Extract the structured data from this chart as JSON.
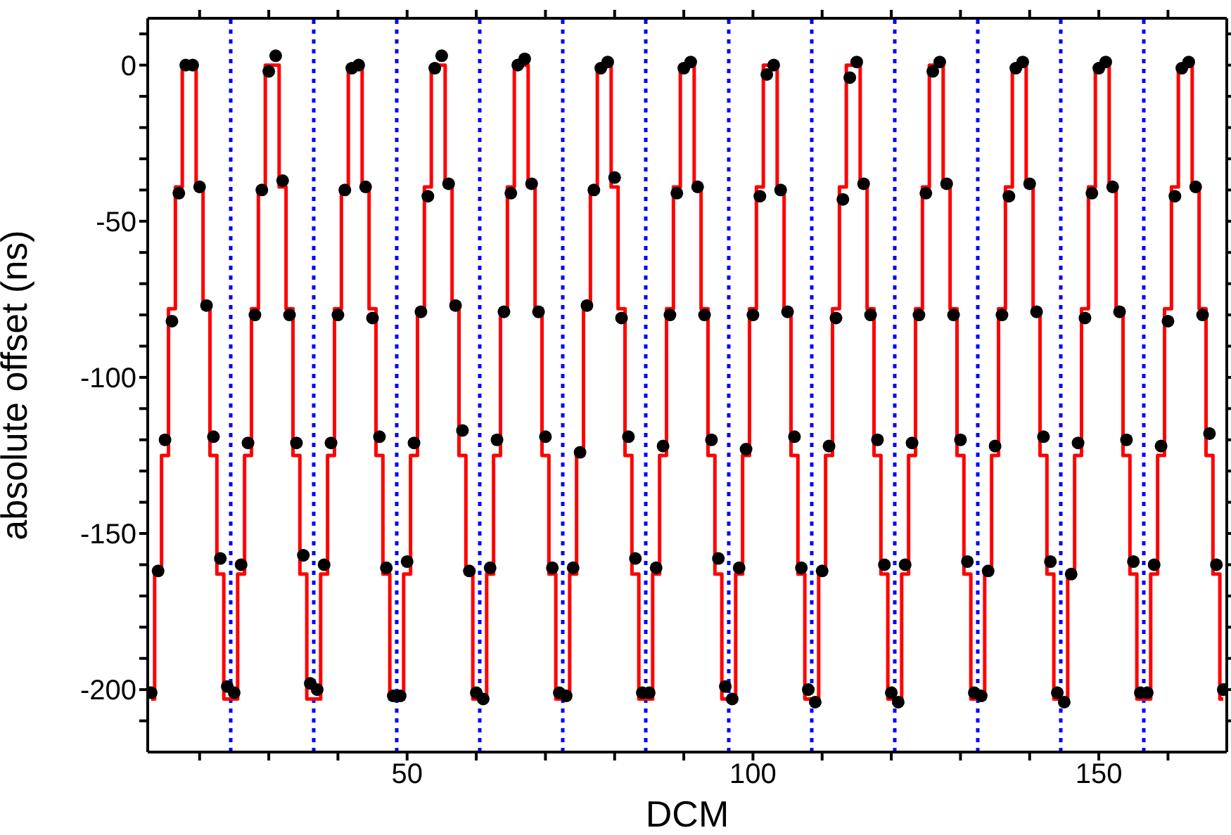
{
  "chart_data": {
    "type": "scatter",
    "xlabel": "DCM",
    "ylabel": "absolute offset (ns)",
    "xlim": [
      12.5,
      168.5
    ],
    "xticks": [
      {
        "value": 20,
        "label": null
      },
      {
        "value": 30,
        "label": null
      },
      {
        "value": 40,
        "label": null
      },
      50,
      {
        "value": 60,
        "label": null
      },
      {
        "value": 70,
        "label": null
      },
      {
        "value": 80,
        "label": null
      },
      {
        "value": 90,
        "label": null
      },
      100,
      {
        "value": 110,
        "label": null
      },
      {
        "value": 120,
        "label": null
      },
      {
        "value": 130,
        "label": null
      },
      {
        "value": 140,
        "label": null
      },
      150,
      {
        "value": 160,
        "label": null
      }
    ],
    "ylim": [
      -220,
      15
    ],
    "yticks": [
      {
        "value": -210,
        "label": null
      },
      -200,
      {
        "value": -190,
        "label": null
      },
      {
        "value": -180,
        "label": null
      },
      {
        "value": -170,
        "label": null
      },
      {
        "value": -160,
        "label": null
      },
      -150,
      {
        "value": -140,
        "label": null
      },
      {
        "value": -130,
        "label": null
      },
      {
        "value": -120,
        "label": null
      },
      {
        "value": -110,
        "label": null
      },
      -100,
      {
        "value": -90,
        "label": null
      },
      {
        "value": -80,
        "label": null
      },
      {
        "value": -70,
        "label": null
      },
      {
        "value": -60,
        "label": null
      },
      -50,
      {
        "value": -40,
        "label": null
      },
      {
        "value": -30,
        "label": null
      },
      {
        "value": -20,
        "label": null
      },
      {
        "value": -10,
        "label": null
      },
      0,
      {
        "value": 10,
        "label": null
      }
    ],
    "grid": false,
    "x": [
      13,
      14,
      15,
      16,
      17,
      18,
      19,
      20,
      21,
      22,
      23,
      24,
      25,
      26,
      27,
      28,
      29,
      30,
      31,
      32,
      33,
      34,
      35,
      36,
      37,
      38,
      39,
      40,
      41,
      42,
      43,
      44,
      45,
      46,
      47,
      48,
      49,
      50,
      51,
      52,
      53,
      54,
      55,
      56,
      57,
      58,
      59,
      60,
      61,
      62,
      63,
      64,
      65,
      66,
      67,
      68,
      69,
      70,
      71,
      72,
      73,
      74,
      75,
      76,
      77,
      78,
      79,
      80,
      81,
      82,
      83,
      84,
      85,
      86,
      87,
      88,
      89,
      90,
      91,
      92,
      93,
      94,
      95,
      96,
      97,
      98,
      99,
      100,
      101,
      102,
      103,
      104,
      105,
      106,
      107,
      108,
      109,
      110,
      111,
      112,
      113,
      114,
      115,
      116,
      117,
      118,
      119,
      120,
      121,
      122,
      123,
      124,
      125,
      126,
      127,
      128,
      129,
      130,
      131,
      132,
      133,
      134,
      135,
      136,
      137,
      138,
      139,
      140,
      141,
      142,
      143,
      144,
      145,
      146,
      147,
      148,
      149,
      150,
      151,
      152,
      153,
      154,
      155,
      156,
      157,
      158,
      159,
      160,
      161,
      162,
      163,
      164,
      165,
      166,
      167,
      168
    ],
    "series": [
      {
        "type": "step",
        "color": "#ff0000",
        "marker": "none",
        "values": [
          -203,
          -163,
          -125,
          -78,
          -39,
          0,
          0,
          -39,
          -78,
          -125,
          -163,
          -203,
          -203,
          -163,
          -125,
          -78,
          -39,
          0,
          0,
          -39,
          -78,
          -125,
          -163,
          -203,
          -203,
          -163,
          -125,
          -78,
          -39,
          0,
          0,
          -39,
          -78,
          -125,
          -163,
          -203,
          -203,
          -163,
          -125,
          -78,
          -39,
          0,
          0,
          -39,
          -78,
          -125,
          -163,
          -203,
          -203,
          -163,
          -125,
          -78,
          -39,
          0,
          0,
          -39,
          -78,
          -125,
          -163,
          -203,
          -203,
          -163,
          -125,
          -78,
          -39,
          0,
          0,
          -39,
          -78,
          -125,
          -163,
          -203,
          -203,
          -163,
          -125,
          -78,
          -39,
          0,
          0,
          -39,
          -78,
          -125,
          -163,
          -203,
          -203,
          -163,
          -125,
          -78,
          -39,
          0,
          0,
          -39,
          -78,
          -125,
          -163,
          -203,
          -203,
          -163,
          -125,
          -78,
          -39,
          0,
          0,
          -39,
          -78,
          -125,
          -163,
          -203,
          -203,
          -163,
          -125,
          -78,
          -39,
          0,
          0,
          -39,
          -78,
          -125,
          -163,
          -203,
          -203,
          -163,
          -125,
          -78,
          -39,
          0,
          0,
          -39,
          -78,
          -125,
          -163,
          -203,
          -203,
          -163,
          -125,
          -78,
          -39,
          0,
          0,
          -39,
          -78,
          -125,
          -163,
          -203,
          -203,
          -163,
          -125,
          -78,
          -39,
          0,
          0,
          -39,
          -78,
          -125,
          -163,
          -203
        ]
      },
      {
        "color": "#000000",
        "marker": "circle",
        "values": [
          -201,
          -162,
          -120,
          -82,
          -41,
          0,
          0,
          -39,
          -77,
          -119,
          -158,
          -199,
          -201,
          -160,
          -121,
          -80,
          -40,
          -2,
          3,
          -37,
          -80,
          -121,
          -157,
          -198,
          -200,
          -160,
          -121,
          -80,
          -40,
          -1,
          0,
          -39,
          -81,
          -119,
          -161,
          -202,
          -202,
          -159,
          -121,
          -79,
          -42,
          -1,
          3,
          -38,
          -77,
          -117,
          -162,
          -201,
          -203,
          -161,
          -120,
          -79,
          -41,
          0,
          2,
          -38,
          -79,
          -119,
          -161,
          -201,
          -202,
          -161,
          -124,
          -77,
          -40,
          -1,
          1,
          -36,
          -81,
          -119,
          -158,
          -201,
          -201,
          -161,
          -122,
          -80,
          -41,
          -1,
          1,
          -39,
          -80,
          -120,
          -158,
          -199,
          -203,
          -161,
          -123,
          -80,
          -42,
          -3,
          0,
          -40,
          -79,
          -119,
          -161,
          -200,
          -204,
          -162,
          -122,
          -81,
          -43,
          -4,
          1,
          -38,
          -80,
          -120,
          -160,
          -201,
          -204,
          -160,
          -121,
          -80,
          -41,
          -2,
          1,
          -38,
          -80,
          -120,
          -159,
          -201,
          -202,
          -162,
          -122,
          -80,
          -42,
          -1,
          1,
          -38,
          -79,
          -119,
          -159,
          -201,
          -204,
          -163,
          -121,
          -81,
          -41,
          -1,
          1,
          -39,
          -79,
          -120,
          -159,
          -201,
          -201,
          -160,
          -122,
          -82,
          -42,
          -1,
          1,
          -39,
          -80,
          -118,
          -160,
          -200
        ]
      }
    ],
    "ref_lines": [
      {
        "axis": "x",
        "value": 24.5,
        "color": "#0000ff",
        "line_style": "dotted"
      },
      {
        "axis": "x",
        "value": 36.5,
        "color": "#0000ff",
        "line_style": "dotted"
      },
      {
        "axis": "x",
        "value": 48.5,
        "color": "#0000ff",
        "line_style": "dotted"
      },
      {
        "axis": "x",
        "value": 60.5,
        "color": "#0000ff",
        "line_style": "dotted"
      },
      {
        "axis": "x",
        "value": 72.5,
        "color": "#0000ff",
        "line_style": "dotted"
      },
      {
        "axis": "x",
        "value": 84.5,
        "color": "#0000ff",
        "line_style": "dotted"
      },
      {
        "axis": "x",
        "value": 96.5,
        "color": "#0000ff",
        "line_style": "dotted"
      },
      {
        "axis": "x",
        "value": 108.5,
        "color": "#0000ff",
        "line_style": "dotted"
      },
      {
        "axis": "x",
        "value": 120.5,
        "color": "#0000ff",
        "line_style": "dotted"
      },
      {
        "axis": "x",
        "value": 132.5,
        "color": "#0000ff",
        "line_style": "dotted"
      },
      {
        "axis": "x",
        "value": 144.5,
        "color": "#0000ff",
        "line_style": "dotted"
      },
      {
        "axis": "x",
        "value": 156.5,
        "color": "#0000ff",
        "line_style": "dotted"
      }
    ]
  }
}
